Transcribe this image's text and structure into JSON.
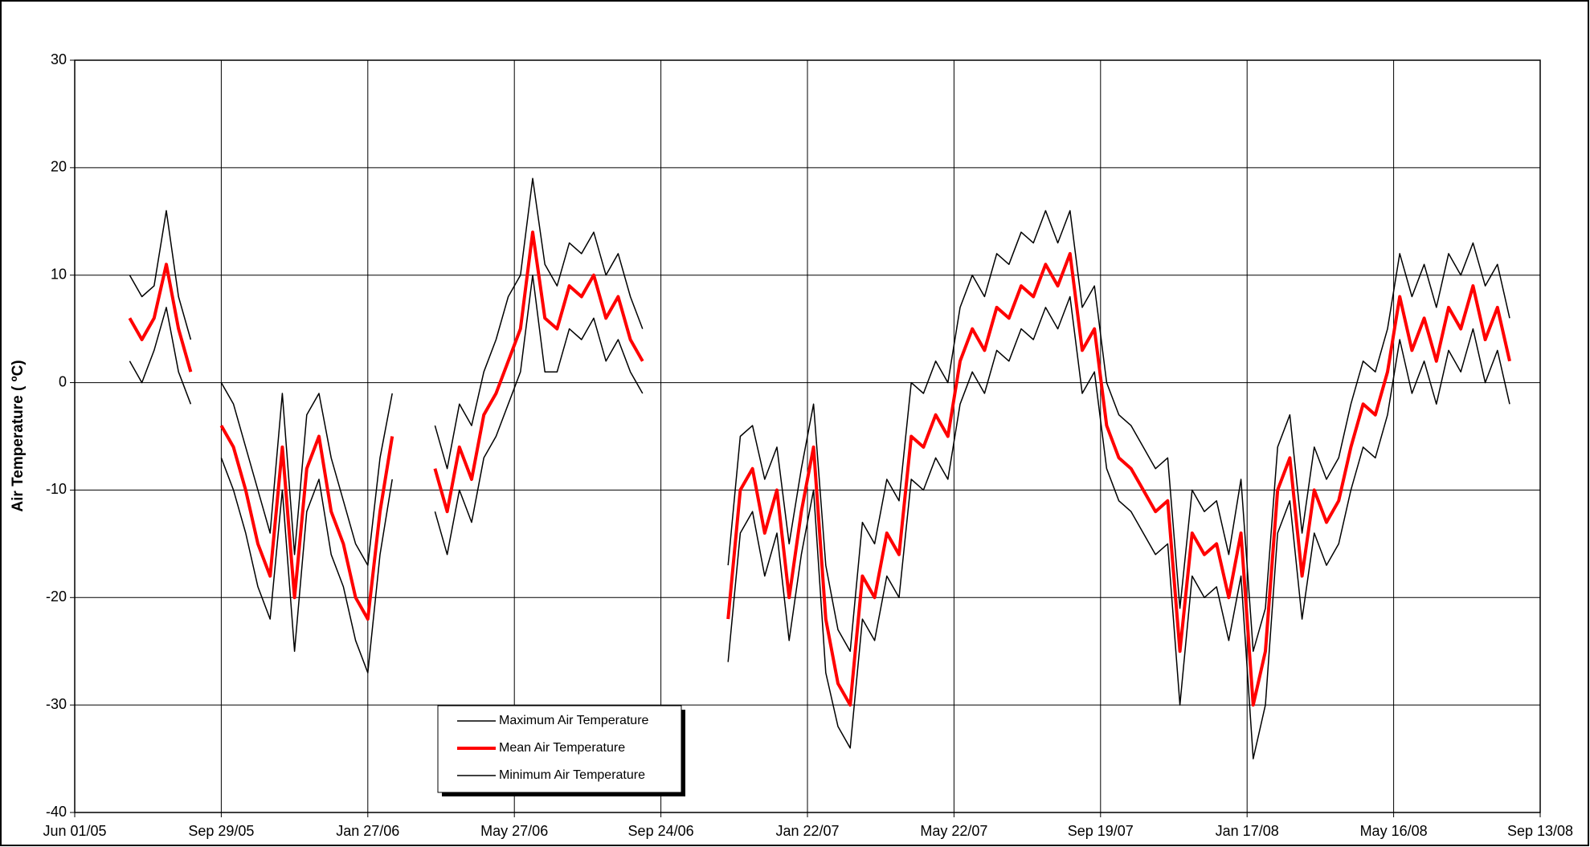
{
  "chart_data": {
    "type": "line",
    "y_label": "Air Temperature ( ºC)",
    "x": [
      "2005-07-16",
      "2005-07-26",
      "2005-08-05",
      "2005-08-15",
      "2005-08-25",
      "2005-09-04",
      "2005-09-14",
      "2005-09-29",
      "2005-10-09",
      "2005-10-19",
      "2005-10-29",
      "2005-11-08",
      "2005-11-18",
      "2005-11-28",
      "2005-12-08",
      "2005-12-18",
      "2005-12-28",
      "2006-01-07",
      "2006-01-17",
      "2006-01-27",
      "2006-02-06",
      "2006-02-16",
      "2006-03-08",
      "2006-03-23",
      "2006-04-02",
      "2006-04-12",
      "2006-04-22",
      "2006-05-02",
      "2006-05-12",
      "2006-05-22",
      "2006-06-01",
      "2006-06-11",
      "2006-06-21",
      "2006-07-01",
      "2006-07-11",
      "2006-07-21",
      "2006-07-31",
      "2006-08-10",
      "2006-08-20",
      "2006-08-30",
      "2006-09-09",
      "2006-10-14",
      "2006-11-18",
      "2006-11-28",
      "2006-12-08",
      "2006-12-18",
      "2006-12-28",
      "2007-01-07",
      "2007-01-17",
      "2007-01-27",
      "2007-02-06",
      "2007-02-16",
      "2007-02-26",
      "2007-03-08",
      "2007-03-18",
      "2007-03-28",
      "2007-04-07",
      "2007-04-17",
      "2007-04-27",
      "2007-05-07",
      "2007-05-17",
      "2007-05-27",
      "2007-06-06",
      "2007-06-16",
      "2007-06-26",
      "2007-07-06",
      "2007-07-16",
      "2007-07-26",
      "2007-08-05",
      "2007-08-15",
      "2007-08-25",
      "2007-09-04",
      "2007-09-14",
      "2007-09-24",
      "2007-10-04",
      "2007-10-14",
      "2007-10-24",
      "2007-11-03",
      "2007-11-13",
      "2007-11-23",
      "2007-12-03",
      "2007-12-13",
      "2007-12-23",
      "2008-01-02",
      "2008-01-12",
      "2008-01-22",
      "2008-02-01",
      "2008-02-11",
      "2008-02-21",
      "2008-03-02",
      "2008-03-12",
      "2008-03-22",
      "2008-04-01",
      "2008-04-11",
      "2008-04-21",
      "2008-05-01",
      "2008-05-11",
      "2008-05-21",
      "2008-05-31",
      "2008-06-10",
      "2008-06-20",
      "2008-06-30",
      "2008-07-10",
      "2008-07-20",
      "2008-07-30",
      "2008-08-09",
      "2008-08-19"
    ],
    "series": [
      {
        "name": "Maximum Air Temperature",
        "color": "#000000",
        "width": 1.5,
        "values": [
          10,
          8,
          9,
          16,
          8,
          4,
          null,
          0,
          -2,
          -6,
          -10,
          -14,
          -1,
          -16,
          -3,
          -1,
          -7,
          -11,
          -15,
          -17,
          -7,
          -1,
          null,
          -4,
          -8,
          -2,
          -4,
          1,
          4,
          8,
          10,
          19,
          11,
          9,
          13,
          12,
          14,
          10,
          12,
          8,
          5,
          null,
          -17,
          -5,
          -4,
          -9,
          -6,
          -15,
          -8,
          -2,
          -17,
          -23,
          -25,
          -13,
          -15,
          -9,
          -11,
          0,
          -1,
          2,
          0,
          7,
          10,
          8,
          12,
          11,
          14,
          13,
          16,
          13,
          16,
          7,
          9,
          0,
          -3,
          -4,
          -6,
          -8,
          -7,
          -21,
          -10,
          -12,
          -11,
          -16,
          -9,
          -25,
          -21,
          -6,
          -3,
          -14,
          -6,
          -9,
          -7,
          -2,
          2,
          1,
          5,
          12,
          8,
          11,
          7,
          12,
          10,
          13,
          9,
          11,
          6
        ]
      },
      {
        "name": "Mean Air Temperature",
        "color": "#ff0000",
        "width": 4,
        "values": [
          6,
          4,
          6,
          11,
          5,
          1,
          null,
          -4,
          -6,
          -10,
          -15,
          -18,
          -6,
          -20,
          -8,
          -5,
          -12,
          -15,
          -20,
          -22,
          -12,
          -5,
          null,
          -8,
          -12,
          -6,
          -9,
          -3,
          -1,
          2,
          5,
          14,
          6,
          5,
          9,
          8,
          10,
          6,
          8,
          4,
          2,
          null,
          -22,
          -10,
          -8,
          -14,
          -10,
          -20,
          -12,
          -6,
          -22,
          -28,
          -30,
          -18,
          -20,
          -14,
          -16,
          -5,
          -6,
          -3,
          -5,
          2,
          5,
          3,
          7,
          6,
          9,
          8,
          11,
          9,
          12,
          3,
          5,
          -4,
          -7,
          -8,
          -10,
          -12,
          -11,
          -25,
          -14,
          -16,
          -15,
          -20,
          -14,
          -30,
          -25,
          -10,
          -7,
          -18,
          -10,
          -13,
          -11,
          -6,
          -2,
          -3,
          1,
          8,
          3,
          6,
          2,
          7,
          5,
          9,
          4,
          7,
          2
        ]
      },
      {
        "name": "Minimum Air Temperature",
        "color": "#000000",
        "width": 1.5,
        "values": [
          2,
          0,
          3,
          7,
          1,
          -2,
          null,
          -7,
          -10,
          -14,
          -19,
          -22,
          -10,
          -25,
          -12,
          -9,
          -16,
          -19,
          -24,
          -27,
          -16,
          -9,
          null,
          -12,
          -16,
          -10,
          -13,
          -7,
          -5,
          -2,
          1,
          10,
          1,
          1,
          5,
          4,
          6,
          2,
          4,
          1,
          -1,
          null,
          -26,
          -14,
          -12,
          -18,
          -14,
          -24,
          -16,
          -10,
          -27,
          -32,
          -34,
          -22,
          -24,
          -18,
          -20,
          -9,
          -10,
          -7,
          -9,
          -2,
          1,
          -1,
          3,
          2,
          5,
          4,
          7,
          5,
          8,
          -1,
          1,
          -8,
          -11,
          -12,
          -14,
          -16,
          -15,
          -30,
          -18,
          -20,
          -19,
          -24,
          -18,
          -35,
          -30,
          -14,
          -11,
          -22,
          -14,
          -17,
          -15,
          -10,
          -6,
          -7,
          -3,
          4,
          -1,
          2,
          -2,
          3,
          1,
          5,
          0,
          3,
          -2
        ]
      }
    ],
    "xlim": [
      "2005-06-01",
      "2008-09-13"
    ],
    "xticks": [
      {
        "value": "2005-06-01",
        "label": "Jun 01/05"
      },
      {
        "value": "2005-09-29",
        "label": "Sep 29/05"
      },
      {
        "value": "2006-01-27",
        "label": "Jan 27/06"
      },
      {
        "value": "2006-05-27",
        "label": "May 27/06"
      },
      {
        "value": "2006-09-24",
        "label": "Sep 24/06"
      },
      {
        "value": "2007-01-22",
        "label": "Jan 22/07"
      },
      {
        "value": "2007-05-22",
        "label": "May 22/07"
      },
      {
        "value": "2007-09-19",
        "label": "Sep 19/07"
      },
      {
        "value": "2008-01-17",
        "label": "Jan 17/08"
      },
      {
        "value": "2008-05-16",
        "label": "May 16/08"
      },
      {
        "value": "2008-09-13",
        "label": "Sep 13/08"
      }
    ],
    "ylim": [
      -40,
      30
    ],
    "yticks": [
      -40,
      -30,
      -20,
      -10,
      0,
      10,
      20,
      30
    ],
    "grid": true,
    "legend": "lower center"
  }
}
